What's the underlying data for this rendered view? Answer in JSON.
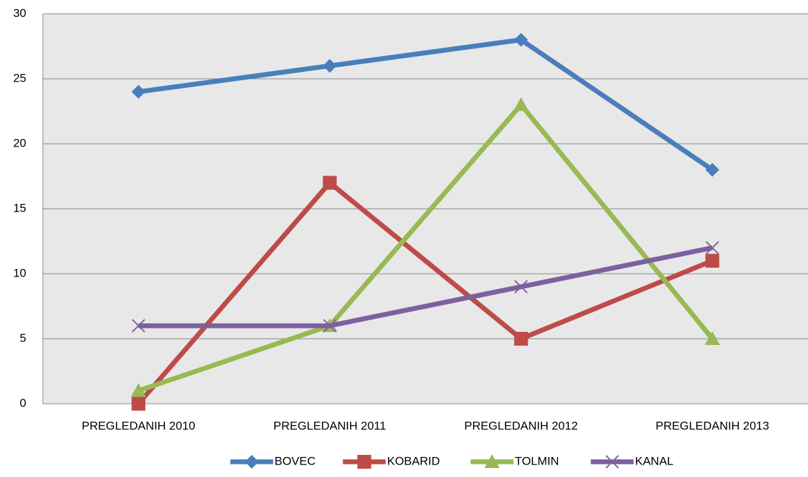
{
  "chart_data": {
    "type": "line",
    "categories": [
      "PREGLEDANIH 2010",
      "PREGLEDANIH 2011",
      "PREGLEDANIH 2012",
      "PREGLEDANIH 2013"
    ],
    "series": [
      {
        "name": "BOVEC",
        "color": "#4a7ebb",
        "values": [
          24,
          26,
          28,
          18
        ]
      },
      {
        "name": "KOBARID",
        "color": "#be4b48",
        "values": [
          0,
          17,
          5,
          11
        ]
      },
      {
        "name": "TOLMIN",
        "color": "#98b954",
        "values": [
          1,
          6,
          23,
          5
        ]
      },
      {
        "name": "KANAL",
        "color": "#7d60a0",
        "values": [
          6,
          6,
          9,
          12
        ]
      }
    ],
    "ylim": [
      0,
      30
    ],
    "yticks": [
      0,
      5,
      10,
      15,
      20,
      25,
      30
    ],
    "grid": true,
    "legend": "bottom"
  }
}
